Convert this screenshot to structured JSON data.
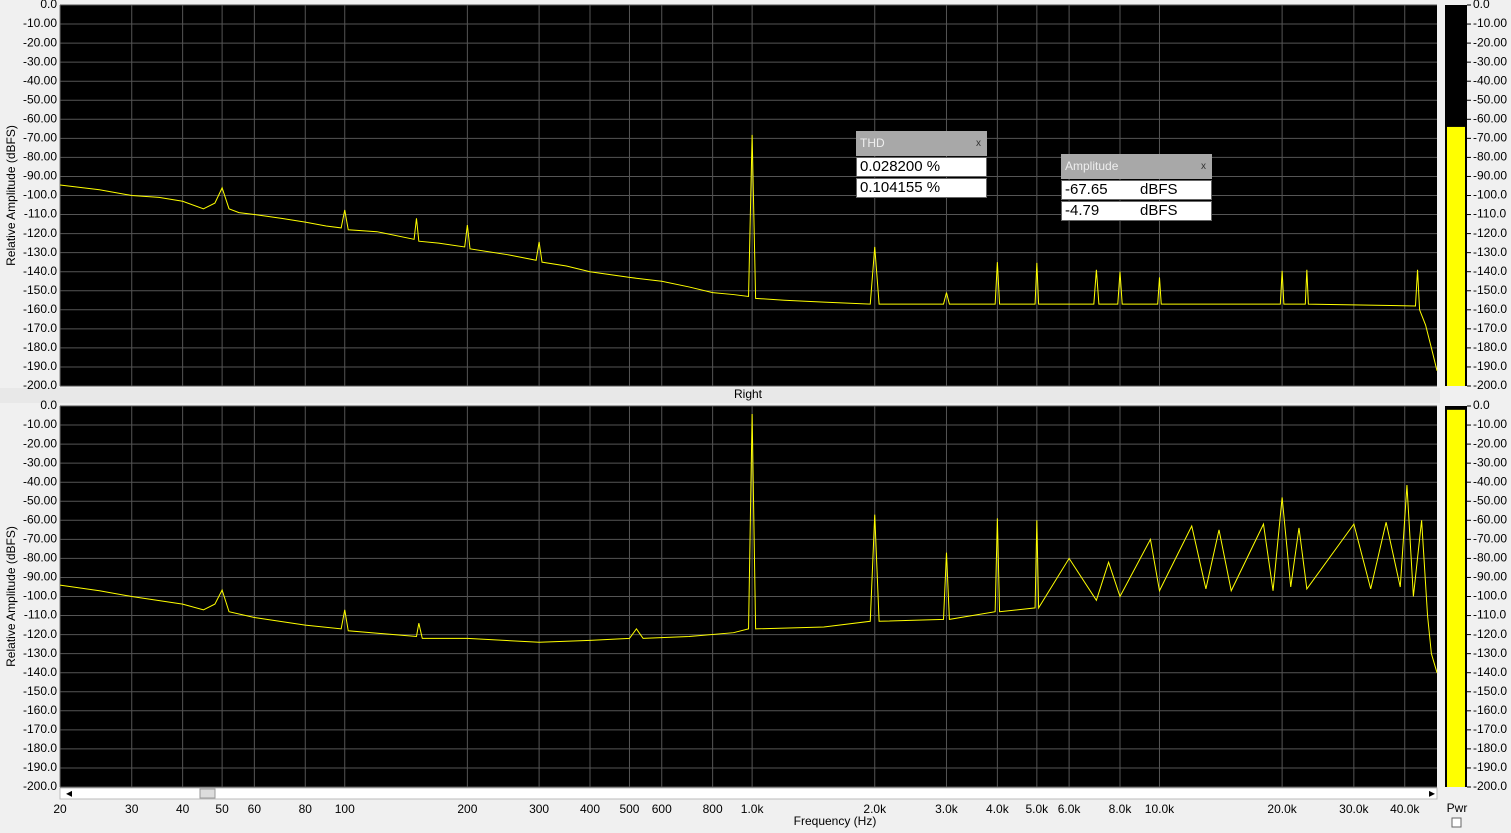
{
  "chart_data": [
    {
      "type": "line",
      "log_x": true,
      "grid": true,
      "ylabel": "Relative Amplitude (dBFS)",
      "xlim": [
        20,
        48000
      ],
      "ylim": [
        -200,
        0
      ],
      "yticks": [
        {
          "value": 0,
          "label": "0.0"
        },
        {
          "value": -10,
          "label": "-10.00"
        },
        {
          "value": -20,
          "label": "-20.00"
        },
        {
          "value": -30,
          "label": "-30.00"
        },
        {
          "value": -40,
          "label": "-40.00"
        },
        {
          "value": -50,
          "label": "-50.00"
        },
        {
          "value": -60,
          "label": "-60.00"
        },
        {
          "value": -70,
          "label": "-70.00"
        },
        {
          "value": -80,
          "label": "-80.00"
        },
        {
          "value": -90,
          "label": "-90.00"
        },
        {
          "value": -100,
          "label": "-100.0"
        },
        {
          "value": -110,
          "label": "-110.0"
        },
        {
          "value": -120,
          "label": "-120.0"
        },
        {
          "value": -130,
          "label": "-130.0"
        },
        {
          "value": -140,
          "label": "-140.0"
        },
        {
          "value": -150,
          "label": "-150.0"
        },
        {
          "value": -160,
          "label": "-160.0"
        },
        {
          "value": -170,
          "label": "-170.0"
        },
        {
          "value": -180,
          "label": "-180.0"
        },
        {
          "value": -190,
          "label": "-190.0"
        },
        {
          "value": -200,
          "label": "-200.0"
        }
      ],
      "meter": -64,
      "meter_color": "#ffff00",
      "series": [
        {
          "color": "#ffff00",
          "x": [
            20,
            25,
            30,
            35,
            40,
            45,
            48,
            50,
            52,
            55,
            60,
            70,
            80,
            90,
            98,
            100,
            102,
            120,
            148,
            150,
            152,
            170,
            197,
            200,
            203,
            250,
            295,
            300,
            305,
            350,
            400,
            500,
            600,
            700,
            800,
            900,
            980,
            1000,
            1020,
            1200,
            1500,
            1950,
            2000,
            2050,
            2950,
            3000,
            3050,
            3950,
            4000,
            4050,
            4950,
            5000,
            5050,
            6900,
            7000,
            7100,
            7900,
            8000,
            8100,
            9900,
            10000,
            10100,
            19800,
            20000,
            20200,
            22800,
            23000,
            23200,
            42500,
            43000,
            43500,
            45000,
            46500,
            48000
          ],
          "values": [
            -94.5,
            -97,
            -100,
            -101,
            -103,
            -107,
            -104,
            -96,
            -107,
            -109,
            -110,
            -112,
            -114,
            -116,
            -117,
            -107.6,
            -118,
            -119,
            -123,
            -112,
            -124,
            -125,
            -127,
            -115.5,
            -128,
            -131,
            -134,
            -124.4,
            -135,
            -137,
            -140,
            -143,
            -145,
            -148,
            -151,
            -152,
            -153,
            -68.2,
            -154,
            -155,
            -156,
            -157,
            -127,
            -157,
            -157,
            -151,
            -157,
            -157,
            -135,
            -157,
            -157,
            -135.4,
            -157,
            -157,
            -139,
            -157,
            -157,
            -140,
            -157,
            -157,
            -143,
            -157,
            -157,
            -139.6,
            -157,
            -157,
            -139,
            -157,
            -158,
            -139,
            -160,
            -168,
            -180,
            -192
          ]
        }
      ]
    },
    {
      "type": "line",
      "log_x": true,
      "grid": true,
      "title": "Right",
      "ylabel": "Relative Amplitude (dBFS)",
      "xlabel": "Frequency (Hz)",
      "xlim": [
        20,
        48000
      ],
      "ylim": [
        -200,
        0
      ],
      "xticks": [
        20,
        30,
        40,
        50,
        60,
        80,
        100,
        200,
        300,
        400,
        500,
        600,
        800,
        {
          "value": 1000,
          "label": "1.0k"
        },
        {
          "value": 2000,
          "label": "2.0k"
        },
        {
          "value": 3000,
          "label": "3.0k"
        },
        {
          "value": 4000,
          "label": "4.0k"
        },
        {
          "value": 5000,
          "label": "5.0k"
        },
        {
          "value": 6000,
          "label": "6.0k"
        },
        {
          "value": 8000,
          "label": "8.0k"
        },
        {
          "value": 10000,
          "label": "10.0k"
        },
        {
          "value": 20000,
          "label": "20.0k"
        },
        {
          "value": 30000,
          "label": "30.0k"
        },
        {
          "value": 40000,
          "label": "40.0k"
        }
      ],
      "yticks": [
        {
          "value": 0,
          "label": "0.0"
        },
        {
          "value": -10,
          "label": "-10.00"
        },
        {
          "value": -20,
          "label": "-20.00"
        },
        {
          "value": -30,
          "label": "-30.00"
        },
        {
          "value": -40,
          "label": "-40.00"
        },
        {
          "value": -50,
          "label": "-50.00"
        },
        {
          "value": -60,
          "label": "-60.00"
        },
        {
          "value": -70,
          "label": "-70.00"
        },
        {
          "value": -80,
          "label": "-80.00"
        },
        {
          "value": -90,
          "label": "-90.00"
        },
        {
          "value": -100,
          "label": "-100.0"
        },
        {
          "value": -110,
          "label": "-110.0"
        },
        {
          "value": -120,
          "label": "-120.0"
        },
        {
          "value": -130,
          "label": "-130.0"
        },
        {
          "value": -140,
          "label": "-140.0"
        },
        {
          "value": -150,
          "label": "-150.0"
        },
        {
          "value": -160,
          "label": "-160.0"
        },
        {
          "value": -170,
          "label": "-170.0"
        },
        {
          "value": -180,
          "label": "-180.0"
        },
        {
          "value": -190,
          "label": "-190.0"
        },
        {
          "value": -200,
          "label": "-200.0"
        }
      ],
      "meter": -2,
      "meter_color": "#ffff00",
      "series": [
        {
          "color": "#ffff00",
          "x": [
            20,
            25,
            30,
            40,
            45,
            48,
            50,
            52,
            60,
            80,
            98,
            100,
            102,
            150,
            152,
            155,
            200,
            300,
            400,
            500,
            520,
            540,
            700,
            900,
            980,
            1000,
            1020,
            1500,
            1950,
            2000,
            2050,
            2950,
            3000,
            3050,
            3950,
            4000,
            4050,
            4950,
            5000,
            5050,
            6000,
            7000,
            7500,
            8000,
            9500,
            10000,
            12000,
            13000,
            14000,
            15000,
            18000,
            19000,
            20000,
            21000,
            22000,
            23000,
            30000,
            33000,
            36000,
            39000,
            40500,
            42000,
            44000,
            45500,
            46500,
            48000
          ],
          "values": [
            -94,
            -97,
            -100,
            -104,
            -107,
            -104,
            -96.6,
            -108,
            -111,
            -115,
            -117,
            -107,
            -118,
            -121,
            -114,
            -122,
            -122,
            -124,
            -123,
            -122,
            -117,
            -122,
            -121,
            -119,
            -117,
            -4.2,
            -117,
            -116,
            -113,
            -57,
            -113,
            -112,
            -77,
            -112,
            -108,
            -59,
            -108,
            -106,
            -60,
            -106,
            -80,
            -102,
            -82,
            -100,
            -70,
            -97,
            -63,
            -96,
            -65,
            -97,
            -62,
            -97,
            -48,
            -95,
            -64,
            -96,
            -62,
            -96,
            -61,
            -95,
            -41.5,
            -100,
            -60,
            -110,
            -130,
            -140
          ]
        }
      ]
    }
  ],
  "meter_label": "Pwr",
  "thd_window": {
    "title": "THD",
    "close": "x",
    "rows": [
      "0.028200 %",
      "0.104155 %"
    ]
  },
  "amplitude_window": {
    "title": "Amplitude",
    "close": "x",
    "rows": [
      [
        "-67.65",
        "dBFS"
      ],
      [
        "-4.79",
        "dBFS"
      ]
    ]
  }
}
